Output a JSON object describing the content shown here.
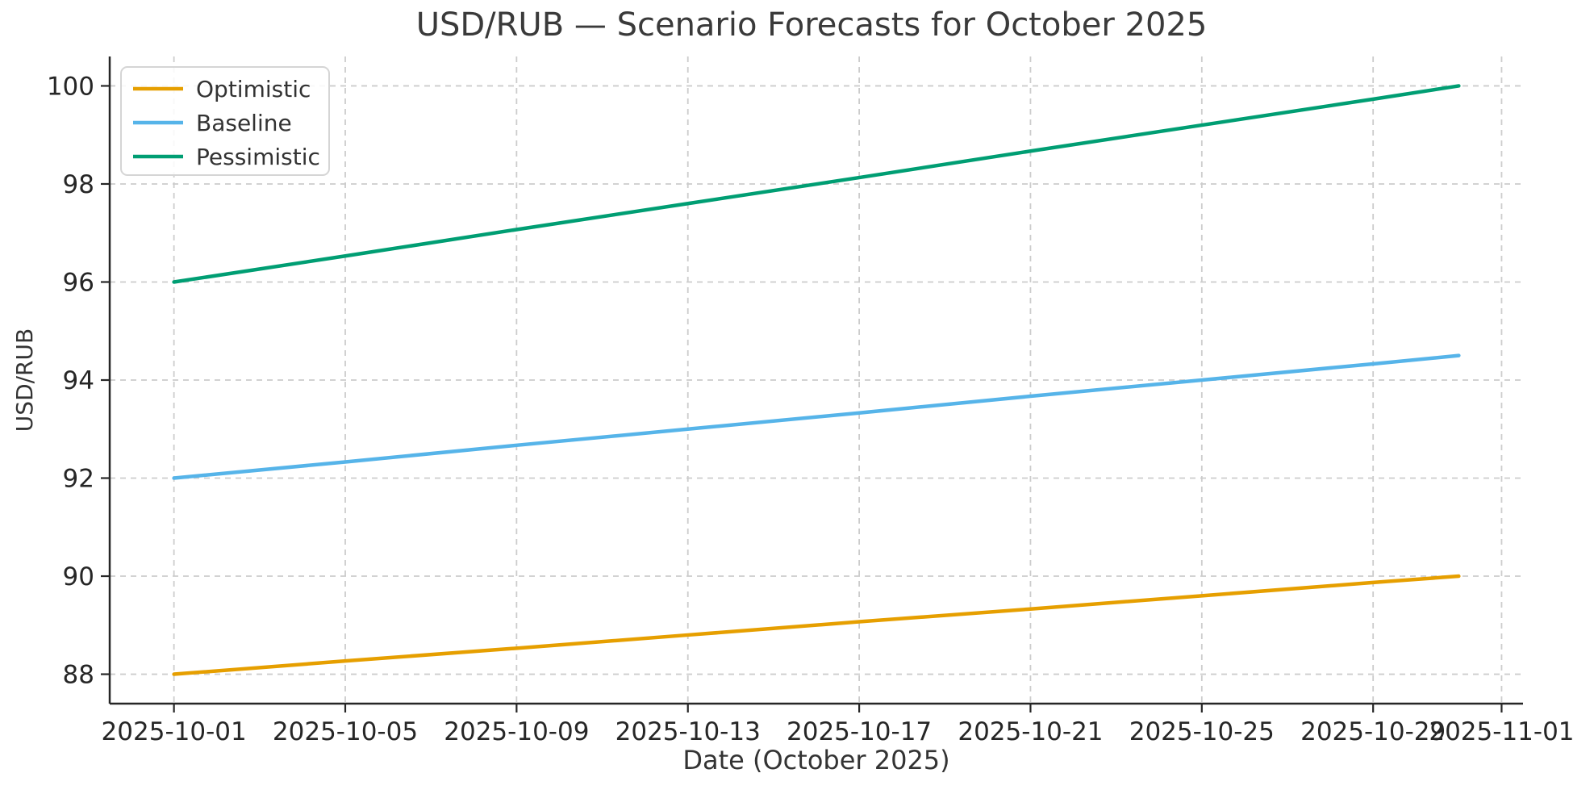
{
  "chart_data": {
    "type": "line",
    "title": "USD/RUB — Scenario Forecasts for October 2025",
    "xlabel": "Date (October 2025)",
    "ylabel": "USD/RUB",
    "x": [
      "2025-10-01",
      "2025-10-05",
      "2025-10-09",
      "2025-10-13",
      "2025-10-17",
      "2025-10-21",
      "2025-10-25",
      "2025-10-29",
      "2025-10-31"
    ],
    "x_days": [
      1,
      5,
      9,
      13,
      17,
      21,
      25,
      29,
      31
    ],
    "series": [
      {
        "name": "Optimistic",
        "color": "#E69F00",
        "start": 88.0,
        "end": 90.0,
        "values": [
          88.0,
          88.27,
          88.53,
          88.8,
          89.07,
          89.33,
          89.6,
          89.87,
          90.0
        ]
      },
      {
        "name": "Baseline",
        "color": "#56B4E9",
        "start": 92.0,
        "end": 94.5,
        "values": [
          92.0,
          92.33,
          92.67,
          93.0,
          93.33,
          93.67,
          94.0,
          94.33,
          94.5
        ]
      },
      {
        "name": "Pessimistic",
        "color": "#009E73",
        "start": 96.0,
        "end": 100.0,
        "values": [
          96.0,
          96.53,
          97.07,
          97.6,
          98.13,
          98.67,
          99.2,
          99.73,
          100.0
        ]
      }
    ],
    "interpolation": "linear",
    "x_ticks": {
      "labels": [
        "2025-10-01",
        "2025-10-05",
        "2025-10-09",
        "2025-10-13",
        "2025-10-17",
        "2025-10-21",
        "2025-10-25",
        "2025-10-29",
        "2025-11-01"
      ],
      "days": [
        1,
        5,
        9,
        13,
        17,
        21,
        25,
        29,
        32
      ]
    },
    "y_ticks": [
      88,
      90,
      92,
      94,
      96,
      98,
      100
    ],
    "xlim_days": [
      -0.5,
      32.5
    ],
    "ylim": [
      87.4,
      100.6
    ],
    "grid": true,
    "grid_color": "#cccccc",
    "axis_color": "#262626",
    "legend": {
      "position": "upper-left",
      "entries": [
        "Optimistic",
        "Baseline",
        "Pessimistic"
      ]
    }
  }
}
